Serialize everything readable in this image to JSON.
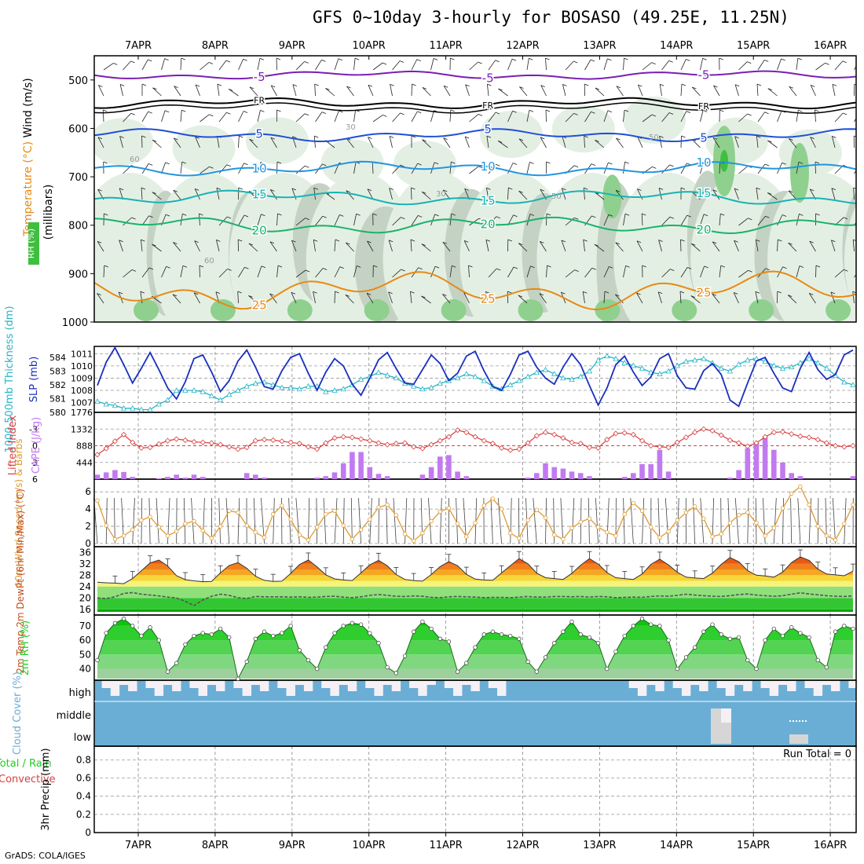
{
  "title": "GFS 0~10day 3-hourly for BOSASO (49.25E, 11.25N)",
  "footer": "GrADS: COLA/IGES",
  "dates": [
    "7APR",
    "8APR",
    "9APR",
    "10APR",
    "11APR",
    "12APR",
    "13APR",
    "14APR",
    "15APR",
    "16APR"
  ],
  "colors": {
    "purple": "#7a1fb3",
    "black": "#000000",
    "blue": "#1f4fd6",
    "cyan": "#2196e0",
    "teal": "#18b3b3",
    "green": "#19b36b",
    "orange": "#e88a12",
    "magenta": "#e0208c",
    "slp": "#1a2fbf",
    "thick": "#27b5c8",
    "li": "#d84040",
    "cape": "#c27af0",
    "wind10": "#e09a30",
    "rh": "#22cc22",
    "cloud": "#6aaed6"
  },
  "chart_data": [
    {
      "id": "upper-air",
      "type": "contour",
      "ylabel_parts": [
        "Wind (m/s)",
        "Temperature (°C)",
        "(millibars)"
      ],
      "legend_box": "RH (%)",
      "yticks": [
        500,
        600,
        700,
        800,
        900,
        1000
      ],
      "ylim": [
        450,
        1000
      ],
      "temperature_contours": [
        {
          "label": "-5",
          "level_mb": 490,
          "color_key": "purple"
        },
        {
          "label": "FR",
          "level_mb": 548,
          "color_key": "black"
        },
        {
          "label": "5",
          "level_mb": 614,
          "color_key": "blue"
        },
        {
          "label": "10",
          "level_mb": 683,
          "color_key": "cyan"
        },
        {
          "label": "15",
          "level_mb": 743,
          "color_key": "teal"
        },
        {
          "label": "20",
          "level_mb": 800,
          "color_key": "green"
        },
        {
          "label": "25",
          "level_mb": 935,
          "color_key": "orange"
        }
      ],
      "rh_labels": [
        "30",
        "50",
        "60"
      ]
    },
    {
      "id": "slp-thickness",
      "type": "line",
      "ylabel_left": "1000-500mb Thickness (dm)",
      "ylabel_right": "SLP (mb)",
      "yticks_left": [
        580,
        581,
        582,
        583,
        584
      ],
      "yticks_right": [
        1007,
        1008,
        1009,
        1010,
        1011
      ],
      "ylim_right": [
        1006.2,
        1011.6
      ],
      "ylim_left": [
        580,
        584.8
      ],
      "series": [
        {
          "color_key": "slp",
          "values": [
            1008.4,
            1010.3,
            1011.5,
            1010.1,
            1008.6,
            1009.8,
            1011.1,
            1009.7,
            1008.2,
            1007.3,
            1008.7,
            1010.6,
            1010.9,
            1009.5,
            1007.9,
            1008.8,
            1010.4,
            1011.3,
            1009.9,
            1008.3,
            1008.1,
            1009.6,
            1010.7,
            1011.0,
            1009.4,
            1008.0,
            1009.5,
            1010.6,
            1010.0,
            1008.5,
            1007.6,
            1009.0,
            1010.5,
            1011.1,
            1009.8,
            1008.6,
            1008.5,
            1009.7,
            1010.9,
            1010.2,
            1008.8,
            1009.4,
            1010.8,
            1011.2,
            1009.6,
            1008.3,
            1008.0,
            1009.3,
            1010.9,
            1011.2,
            1009.9,
            1009.0,
            1008.5,
            1009.9,
            1011.0,
            1010.1,
            1008.4,
            1006.8,
            1008.2,
            1010.1,
            1010.8,
            1009.5,
            1008.4,
            1009.1,
            1010.6,
            1011.0,
            1009.2,
            1008.2,
            1008.1,
            1009.6,
            1010.2,
            1009.3,
            1007.2,
            1006.7,
            1008.6,
            1010.4,
            1010.7,
            1009.4,
            1008.2,
            1007.9,
            1009.8,
            1011.1,
            1009.7,
            1008.9,
            1009.3,
            1010.9,
            1011.3
          ]
        },
        {
          "color_key": "thick",
          "values": [
            580.8,
            580.6,
            580.5,
            580.3,
            580.3,
            580.2,
            580.2,
            580.6,
            580.9,
            581.6,
            581.6,
            581.6,
            581.5,
            581.2,
            580.9,
            581.3,
            581.6,
            581.9,
            582.1,
            582.2,
            582.0,
            581.8,
            581.8,
            581.7,
            581.9,
            581.9,
            581.5,
            581.6,
            581.7,
            582.0,
            582.4,
            582.6,
            582.9,
            582.7,
            582.5,
            582.1,
            581.9,
            581.7,
            581.8,
            582.1,
            582.3,
            582.5,
            582.8,
            582.6,
            582.3,
            581.9,
            581.7,
            582.0,
            582.3,
            582.6,
            582.9,
            583.1,
            582.8,
            582.5,
            582.4,
            582.6,
            583.0,
            583.8,
            584.1,
            583.9,
            583.6,
            583.4,
            583.2,
            582.9,
            582.8,
            583.0,
            583.4,
            583.7,
            583.8,
            583.9,
            583.6,
            583.2,
            583.0,
            583.5,
            583.8,
            583.9,
            583.7,
            583.4,
            583.2,
            583.3,
            583.6,
            583.9,
            583.6,
            583.2,
            582.7,
            582.2,
            582.0
          ]
        }
      ]
    },
    {
      "id": "li-cape",
      "type": "bar+line",
      "ylabel_left": "Lifted Index",
      "ylabel_right": "CAPE (J/kg)",
      "yticks_left": [
        -3,
        0,
        3,
        6
      ],
      "yticks_right": [
        444,
        888,
        1332,
        1776
      ],
      "ylim_left": [
        -6,
        6
      ],
      "ylim_right": [
        0,
        1776
      ],
      "lifted_index": [
        1.6,
        0.5,
        -0.8,
        -2.0,
        -0.6,
        0.4,
        0.3,
        -0.3,
        -0.9,
        -1.2,
        -1.0,
        -0.7,
        -0.6,
        -0.5,
        -0.2,
        0.2,
        0.6,
        0.3,
        -0.9,
        -1.1,
        -1.0,
        -0.8,
        -0.6,
        -0.4,
        0.2,
        0.6,
        -0.5,
        -1.4,
        -1.6,
        -1.5,
        -1.2,
        -0.9,
        -0.5,
        -0.2,
        -0.4,
        -0.5,
        0.2,
        0.5,
        -0.2,
        -0.9,
        -1.6,
        -2.8,
        -2.4,
        -1.6,
        -0.9,
        -0.4,
        0.4,
        0.8,
        0.6,
        -0.5,
        -1.8,
        -2.4,
        -2.0,
        -1.4,
        -0.6,
        -0.4,
        0.3,
        0.4,
        -1.1,
        -2.2,
        -2.3,
        -2.0,
        -0.9,
        0.0,
        0.2,
        0.3,
        -0.6,
        -1.5,
        -2.4,
        -3.0,
        -2.7,
        -1.9,
        -1.0,
        -0.5,
        0.1,
        -0.5,
        -1.6,
        -2.4,
        -2.5,
        -2.1,
        -1.7,
        -1.5,
        -1.1,
        -0.5,
        0.0,
        0.2,
        0.0
      ],
      "cape": [
        120,
        180,
        240,
        190,
        60,
        0,
        0,
        20,
        60,
        120,
        40,
        120,
        60,
        0,
        0,
        0,
        0,
        160,
        120,
        40,
        0,
        0,
        0,
        0,
        0,
        40,
        80,
        180,
        420,
        720,
        720,
        320,
        140,
        80,
        0,
        0,
        0,
        120,
        320,
        600,
        640,
        200,
        80,
        0,
        0,
        0,
        0,
        0,
        0,
        40,
        160,
        420,
        320,
        280,
        200,
        160,
        80,
        0,
        0,
        0,
        60,
        160,
        400,
        400,
        780,
        200,
        0,
        0,
        0,
        0,
        0,
        0,
        40,
        240,
        820,
        960,
        1120,
        780,
        440,
        160,
        80,
        0,
        0,
        0,
        0,
        0,
        80
      ]
    },
    {
      "id": "wind-10m",
      "type": "line",
      "ylabel": "10m Wind Speed (m/s) & Barbs",
      "yticks": [
        0,
        2,
        4,
        6
      ],
      "ylim": [
        0,
        7.2
      ],
      "values": [
        5.0,
        2.1,
        0.5,
        0.9,
        1.6,
        2.7,
        3.1,
        1.9,
        0.9,
        1.4,
        2.3,
        2.6,
        1.5,
        0.6,
        2.0,
        3.8,
        3.6,
        2.1,
        1.3,
        0.7,
        3.4,
        4.4,
        2.8,
        1.0,
        0.4,
        1.9,
        3.4,
        3.8,
        2.1,
        0.5,
        1.6,
        2.8,
        4.2,
        4.5,
        3.3,
        1.1,
        0.3,
        1.2,
        2.6,
        3.7,
        4.1,
        2.3,
        0.8,
        2.4,
        4.4,
        5.2,
        4.0,
        1.2,
        0.6,
        2.7,
        3.9,
        3.0,
        1.0,
        0.5,
        1.8,
        2.5,
        2.9,
        1.9,
        1.3,
        0.9,
        3.4,
        4.7,
        3.8,
        1.9,
        0.7,
        1.4,
        2.7,
        3.6,
        4.3,
        2.9,
        0.8,
        1.1,
        2.4,
        3.3,
        3.6,
        2.4,
        0.9,
        1.8,
        4.1,
        5.8,
        6.6,
        4.5,
        2.0,
        0.9,
        0.4,
        2.3,
        4.5
      ]
    },
    {
      "id": "temp-2m",
      "type": "area",
      "ylabel": "2m Temp 2m DewPt (6hr Min/Max) (°C)",
      "yticks": [
        16,
        20,
        24,
        28,
        32,
        36
      ],
      "ylim": [
        14,
        38
      ],
      "temperature": [
        25.5,
        25.3,
        25.2,
        25.0,
        26.8,
        29.5,
        32.3,
        33.3,
        31.2,
        27.8,
        26.4,
        26.0,
        25.7,
        25.8,
        28.8,
        31.4,
        32.4,
        30.4,
        27.6,
        26.2,
        25.8,
        25.9,
        28.6,
        31.7,
        33.3,
        30.9,
        28.1,
        26.7,
        26.3,
        26.1,
        28.8,
        31.6,
        33.2,
        31.3,
        28.2,
        26.5,
        26.1,
        25.9,
        28.2,
        31.0,
        32.8,
        31.3,
        28.3,
        26.6,
        26.3,
        26.2,
        28.8,
        31.3,
        33.8,
        32.0,
        28.7,
        27.1,
        26.8,
        26.5,
        28.6,
        31.5,
        33.8,
        31.9,
        28.9,
        27.1,
        26.8,
        26.5,
        28.4,
        31.8,
        33.6,
        31.6,
        29.0,
        27.3,
        27.0,
        26.8,
        28.7,
        31.8,
        34.2,
        32.7,
        29.6,
        28.0,
        27.7,
        27.3,
        29.1,
        32.4,
        34.4,
        33.2,
        30.1,
        28.4,
        28.1,
        27.8,
        29.4
      ],
      "dewpoint": [
        20.0,
        19.8,
        20.4,
        21.6,
        21.9,
        21.3,
        21.0,
        20.7,
        20.3,
        20.0,
        18.8,
        17.3,
        19.3,
        20.6,
        21.3,
        20.9,
        20.1,
        19.8,
        20.5,
        20.4,
        20.4,
        20.4,
        20.3,
        20.4,
        20.2,
        20.3,
        20.5,
        20.6,
        20.3,
        20.1,
        20.4,
        20.9,
        21.2,
        20.9,
        20.6,
        20.5,
        20.7,
        20.6,
        20.2,
        20.1,
        20.4,
        20.5,
        20.4,
        20.3,
        20.1,
        20.2,
        20.2,
        20.1,
        20.3,
        20.5,
        20.3,
        20.3,
        20.5,
        20.5,
        20.4,
        20.5,
        20.3,
        20.5,
        20.4,
        20.1,
        20.2,
        20.3,
        20.2,
        20.5,
        20.7,
        20.6,
        20.9,
        21.3,
        21.0,
        20.8,
        20.6,
        20.5,
        20.8,
        21.2,
        21.4,
        21.0,
        20.8,
        20.6,
        20.8,
        21.3,
        21.8,
        21.4,
        21.1,
        20.8,
        20.6,
        20.5,
        20.7
      ]
    },
    {
      "id": "rh-2m",
      "type": "area",
      "ylabel": "2m RH (%)",
      "yticks": [
        40,
        50,
        60,
        70
      ],
      "ylim": [
        32,
        76
      ],
      "values": [
        46,
        65,
        72,
        75,
        70,
        63,
        69,
        60,
        38,
        44,
        57,
        63,
        65,
        64,
        68,
        62,
        33,
        45,
        61,
        66,
        63,
        65,
        70,
        53,
        46,
        40,
        55,
        65,
        70,
        72,
        71,
        65,
        58,
        41,
        37,
        49,
        66,
        73,
        68,
        61,
        59,
        38,
        44,
        55,
        64,
        66,
        64,
        63,
        61,
        45,
        38,
        48,
        58,
        66,
        73,
        64,
        62,
        58,
        40,
        52,
        63,
        70,
        75,
        71,
        70,
        60,
        40,
        48,
        55,
        66,
        71,
        64,
        61,
        62,
        46,
        40,
        60,
        68,
        63,
        69,
        65,
        62,
        46,
        41,
        66,
        70,
        68
      ]
    },
    {
      "id": "cloud-cover",
      "type": "area",
      "ylabel": "Cloud Cover (%)",
      "ytick_labels": [
        "high",
        "middle",
        "low"
      ]
    },
    {
      "id": "precip",
      "type": "bar",
      "ylabel_total": "Total / Rain",
      "ylabel_conv": "Convective",
      "ylabel": "3hr Precip (mm)",
      "yticks": [
        0,
        0.2,
        0.4,
        0.6,
        0.8
      ],
      "ylim": [
        0,
        0.95
      ],
      "run_total": "Run Total = 0",
      "values": []
    }
  ]
}
